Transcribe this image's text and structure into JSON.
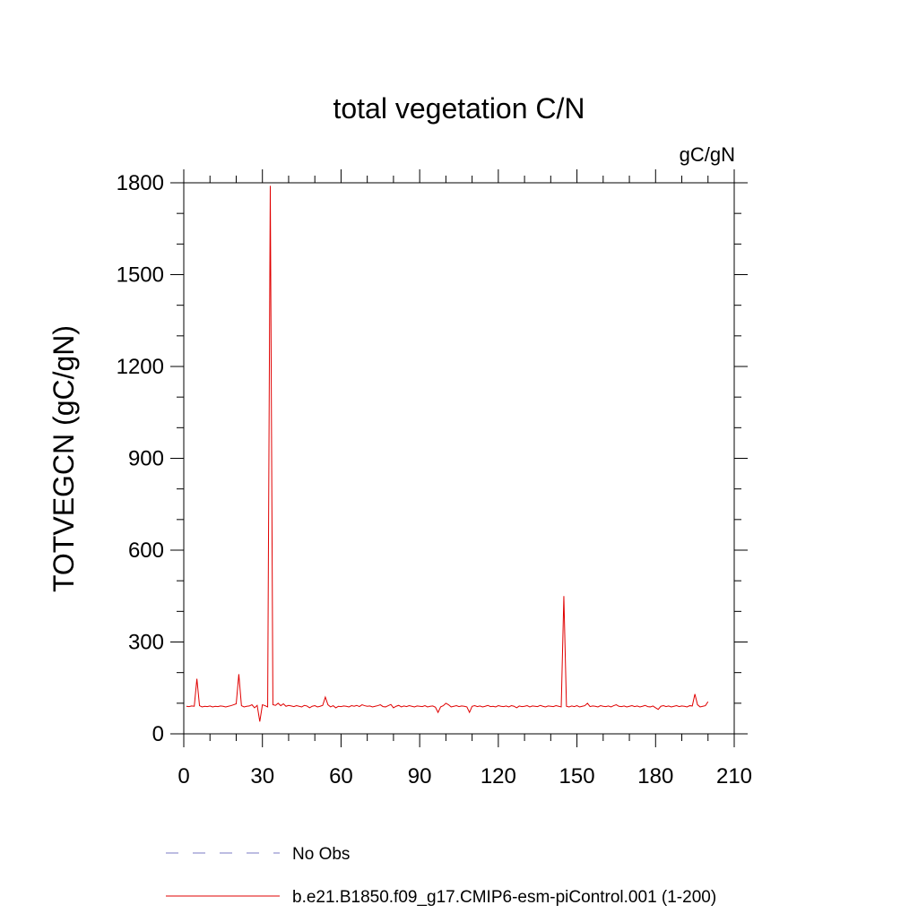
{
  "chart_data": {
    "type": "line",
    "title": "total vegetation C/N",
    "units_label": "gC/gN",
    "ylabel": "TOTVEGCN  (gC/gN)",
    "xlim": [
      0,
      210
    ],
    "xticks": [
      0,
      30,
      60,
      90,
      120,
      150,
      180,
      210
    ],
    "xminor_ticks": [
      10,
      20,
      40,
      50,
      70,
      80,
      100,
      110,
      130,
      140,
      160,
      170,
      190,
      200
    ],
    "ylim": [
      0,
      1800
    ],
    "yticks": [
      0,
      300,
      600,
      900,
      1200,
      1500,
      1800
    ],
    "yminor_ticks": [
      100,
      200,
      400,
      500,
      700,
      800,
      1000,
      1100,
      1300,
      1400,
      1600,
      1700
    ],
    "x": [
      1,
      2,
      3,
      4,
      5,
      6,
      7,
      8,
      9,
      10,
      11,
      12,
      13,
      14,
      15,
      16,
      17,
      18,
      19,
      20,
      21,
      22,
      23,
      24,
      25,
      26,
      27,
      28,
      29,
      30,
      31,
      32,
      33,
      34,
      35,
      36,
      37,
      38,
      39,
      40,
      41,
      42,
      43,
      44,
      45,
      46,
      47,
      48,
      49,
      50,
      51,
      52,
      53,
      54,
      55,
      56,
      57,
      58,
      59,
      60,
      61,
      62,
      63,
      64,
      65,
      66,
      67,
      68,
      69,
      70,
      71,
      72,
      73,
      74,
      75,
      76,
      77,
      78,
      79,
      80,
      81,
      82,
      83,
      84,
      85,
      86,
      87,
      88,
      89,
      90,
      91,
      92,
      93,
      94,
      95,
      96,
      97,
      98,
      99,
      100,
      101,
      102,
      103,
      104,
      105,
      106,
      107,
      108,
      109,
      110,
      111,
      112,
      113,
      114,
      115,
      116,
      117,
      118,
      119,
      120,
      121,
      122,
      123,
      124,
      125,
      126,
      127,
      128,
      129,
      130,
      131,
      132,
      133,
      134,
      135,
      136,
      137,
      138,
      139,
      140,
      141,
      142,
      143,
      144,
      145,
      146,
      147,
      148,
      149,
      150,
      151,
      152,
      153,
      154,
      155,
      156,
      157,
      158,
      159,
      160,
      161,
      162,
      163,
      164,
      165,
      166,
      167,
      168,
      169,
      170,
      171,
      172,
      173,
      174,
      175,
      176,
      177,
      178,
      179,
      180,
      181,
      182,
      183,
      184,
      185,
      186,
      187,
      188,
      189,
      190,
      191,
      192,
      193,
      194,
      195,
      196,
      197,
      198,
      199,
      200
    ],
    "series": [
      {
        "name": "No Obs",
        "color": "#7b7bc4",
        "dash": true
      },
      {
        "name": "b.e21.B1850.f09_g17.CMIP6-esm-piControl.001 (1-200)",
        "color": "#e00000",
        "dash": false,
        "values": [
          90,
          89,
          91,
          90,
          180,
          92,
          88,
          90,
          89,
          91,
          88,
          90,
          89,
          91,
          90,
          88,
          90,
          92,
          95,
          98,
          195,
          92,
          88,
          90,
          91,
          95,
          85,
          93,
          40,
          95,
          92,
          88,
          1790,
          95,
          93,
          100,
          92,
          98,
          90,
          93,
          91,
          89,
          92,
          90,
          88,
          93,
          91,
          85,
          90,
          92,
          88,
          90,
          93,
          120,
          95,
          88,
          92,
          85,
          90,
          89,
          91,
          90,
          88,
          92,
          90,
          93,
          89,
          95,
          92,
          90,
          91,
          88,
          90,
          92,
          95,
          89,
          88,
          92,
          96,
          85,
          90,
          93,
          88,
          91,
          89,
          92,
          90,
          88,
          91,
          90,
          89,
          92,
          88,
          90,
          91,
          87,
          70,
          88,
          92,
          100,
          95,
          88,
          90,
          92,
          89,
          91,
          90,
          88,
          70,
          90,
          92,
          89,
          91,
          88,
          90,
          93,
          89,
          90,
          88,
          92,
          90,
          89,
          91,
          88,
          92,
          90,
          85,
          91,
          89,
          90,
          92,
          88,
          91,
          90,
          89,
          93,
          90,
          88,
          91,
          90,
          89,
          92,
          90,
          88,
          450,
          90,
          88,
          91,
          89,
          92,
          88,
          90,
          92,
          100,
          89,
          91,
          90,
          88,
          92,
          90,
          89,
          91,
          88,
          92,
          95,
          90,
          89,
          91,
          88,
          90,
          92,
          89,
          91,
          88,
          90,
          93,
          89,
          88,
          91,
          85,
          80,
          90,
          92,
          89,
          91,
          88,
          90,
          92,
          89,
          91,
          90,
          88,
          92,
          91,
          130,
          95,
          88,
          90,
          92,
          105
        ]
      }
    ]
  }
}
